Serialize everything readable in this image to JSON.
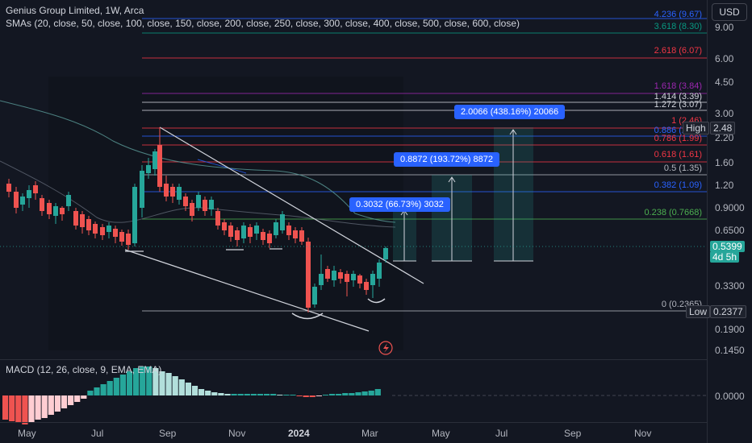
{
  "header": {
    "title": "Genius Group Limited, 1W, Arca",
    "smas": "SMAs (20, close, 50, close, 100, close, 150, close, 200, close, 250, close, 300, close, 400, close, 500, close, 600, close)",
    "currency": "USD"
  },
  "macd": {
    "label": "MACD (12, 26, close, 9, EMA, EMA)",
    "zero": "0.0000"
  },
  "price_axis": [
    "9.00",
    "6.00",
    "4.50",
    "3.00",
    "2.20",
    "1.60",
    "1.20",
    "0.9000",
    "0.6500",
    "0.3300",
    "0.1900",
    "0.1450"
  ],
  "time_axis": [
    "May",
    "Jul",
    "Sep",
    "Nov",
    "2024",
    "Mar",
    "May",
    "Jul",
    "Sep",
    "Nov"
  ],
  "fib": [
    {
      "text": "4.236 (9.67)",
      "color": "#2962ff"
    },
    {
      "text": "3.618 (8.30)",
      "color": "#089981"
    },
    {
      "text": "2.618 (6.07)",
      "color": "#f23645"
    },
    {
      "text": "1.618 (3.84)",
      "color": "#9c27b0"
    },
    {
      "text": "1.414 (3.39)",
      "color": "#d1d4dc"
    },
    {
      "text": "1.272 (3.07)",
      "color": "#d1d4dc"
    },
    {
      "text": "1 (2.46)",
      "color": "#f23645"
    },
    {
      "text": "0.886 (2.21)",
      "color": "#2962ff"
    },
    {
      "text": "0.786 (1.99)",
      "color": "#f23645"
    },
    {
      "text": "0.618 (1.61)",
      "color": "#f23645"
    },
    {
      "text": "0.5 (1.35)",
      "color": "#b2b5be"
    },
    {
      "text": "0.382 (1.09)",
      "color": "#2962ff"
    },
    {
      "text": "0.238 (0.7668)",
      "color": "#4caf50"
    },
    {
      "text": "0 (0.2365)",
      "color": "#b2b5be"
    }
  ],
  "price_tags": {
    "high_label": "High",
    "high_value": "2.48",
    "current_value": "0.5399",
    "countdown": "4d 5h",
    "low_label": "Low",
    "low_value": "0.2377"
  },
  "measures": [
    {
      "text": "0.3032 (66.73%) 3032"
    },
    {
      "text": "0.8872 (193.72%) 8872"
    },
    {
      "text": "2.0066 (438.16%) 20066"
    }
  ],
  "colors": {
    "up": "#26a69a",
    "down": "#ef5350",
    "bg": "#131722",
    "macd_up": "#26a69a",
    "macd_up_light": "#b2dfdb",
    "macd_down": "#ef5350",
    "macd_down_light": "#ffcdd2"
  },
  "icons": {
    "alert": "lightning-icon"
  }
}
